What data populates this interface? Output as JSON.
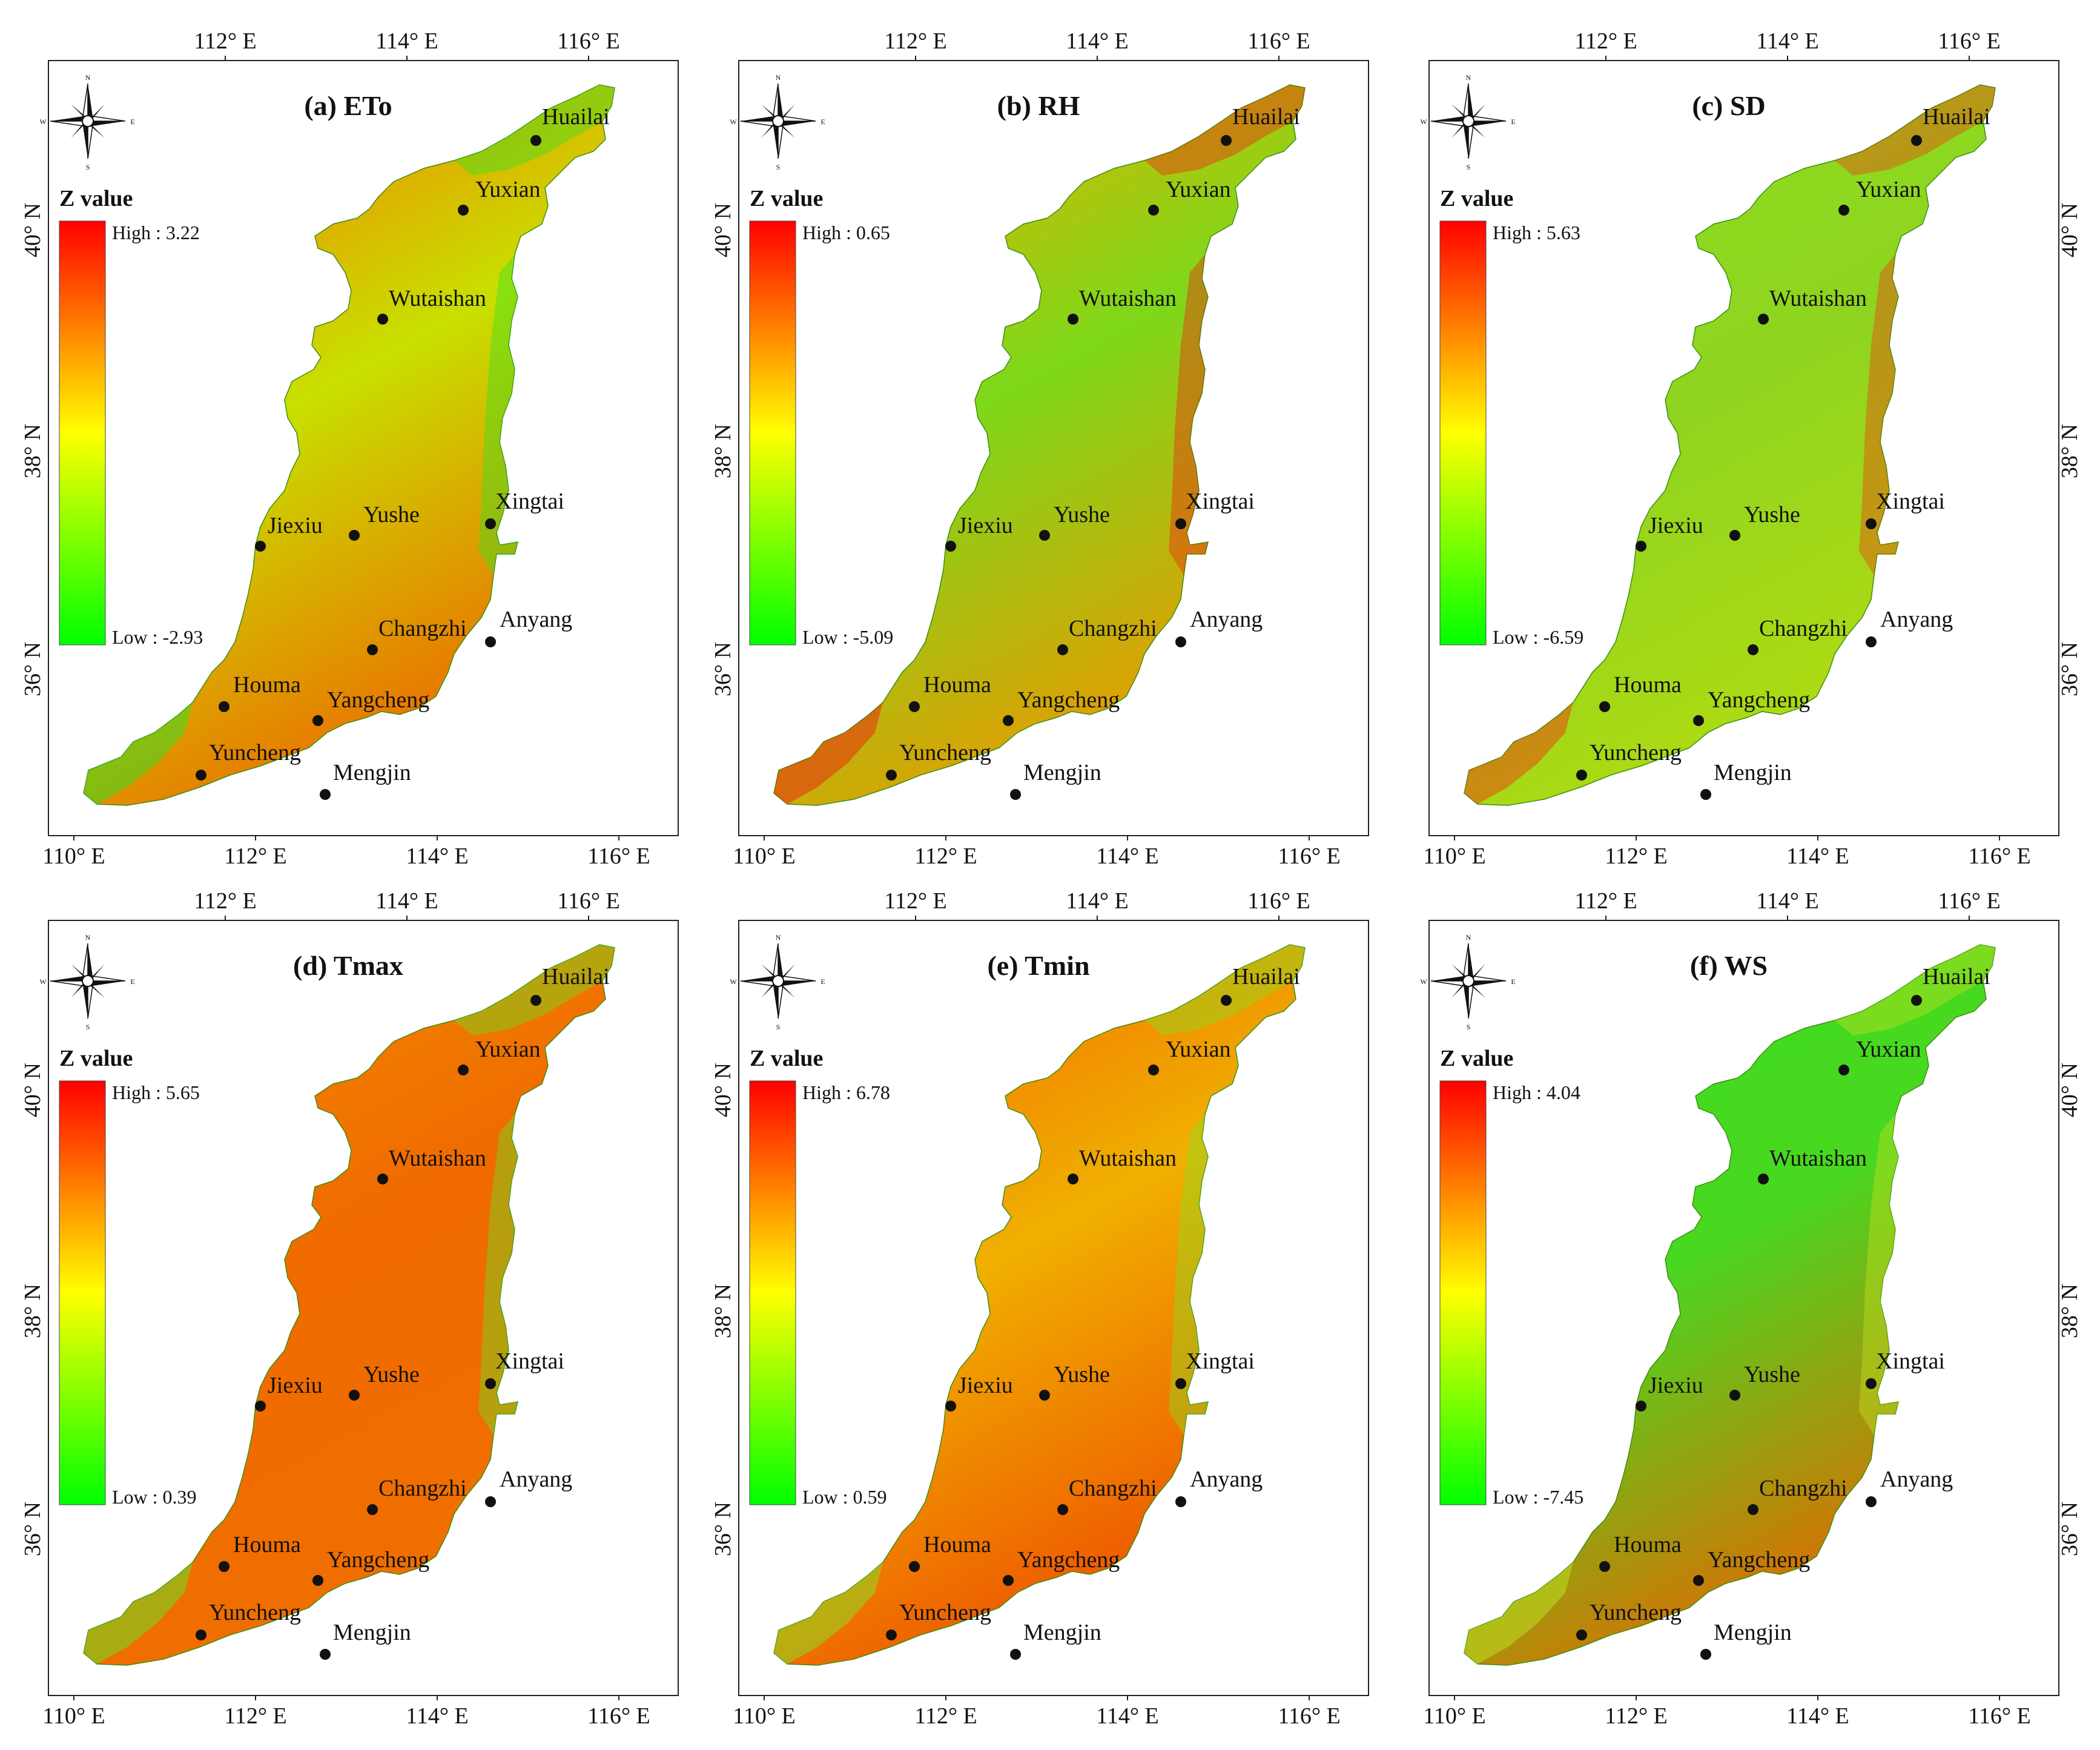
{
  "figure_title": "",
  "legend": {
    "title": "Z value",
    "high_prefix": "High : ",
    "low_prefix": "Low : "
  },
  "axis_labels": {
    "top": [
      "112° E",
      "114° E",
      "116° E"
    ],
    "bottom": [
      "110° E",
      "112° E",
      "114° E",
      "116° E"
    ],
    "lat": [
      "40° N",
      "38° N",
      "36° N"
    ]
  },
  "stations": [
    "Huailai",
    "Yuxian",
    "Wutaishan",
    "Jiexiu",
    "Yushe",
    "Xingtai",
    "Changzhi",
    "Anyang",
    "Houma",
    "Yangcheng",
    "Yuncheng",
    "Mengjin"
  ],
  "compass": {
    "n": "N",
    "s": "S",
    "e": "E",
    "w": "W"
  },
  "panels": [
    {
      "id": "a",
      "title": "(a) ETo",
      "high": "3.22",
      "low": "-2.93",
      "lat_side": "left",
      "colors": {
        "north": "#f57a00",
        "mid": "#c8e000",
        "south": "#f06000",
        "edge": "#3ddf20"
      }
    },
    {
      "id": "b",
      "title": "(b) RH",
      "high": "0.65",
      "low": "-5.09",
      "lat_side": "left",
      "colors": {
        "north": "#e8b000",
        "mid": "#7ed81a",
        "south": "#f29500",
        "edge": "#e83010"
      }
    },
    {
      "id": "c",
      "title": "(c) SD",
      "high": "5.63",
      "low": "-6.59",
      "lat_side": "right",
      "colors": {
        "north": "#8fe020",
        "mid": "#8ed420",
        "south": "#b4dc10",
        "edge": "#e84a10"
      }
    },
    {
      "id": "d",
      "title": "(d) Tmax",
      "high": "5.65",
      "low": "0.39",
      "lat_side": "left",
      "colors": {
        "north": "#f08a00",
        "mid": "#f06a00",
        "south": "#f07000",
        "edge": "#6ede20"
      }
    },
    {
      "id": "e",
      "title": "(e) Tmin",
      "high": "6.78",
      "low": "0.59",
      "lat_side": "left",
      "colors": {
        "north": "#f26a00",
        "mid": "#f0b000",
        "south": "#ee4a00",
        "edge": "#8edc20"
      }
    },
    {
      "id": "f",
      "title": "(f) WS",
      "high": "4.04",
      "low": "-7.45",
      "lat_side": "right",
      "colors": {
        "north": "#3fdc20",
        "mid": "#48d820",
        "south": "#f06000",
        "edge": "#bce020"
      }
    }
  ]
}
